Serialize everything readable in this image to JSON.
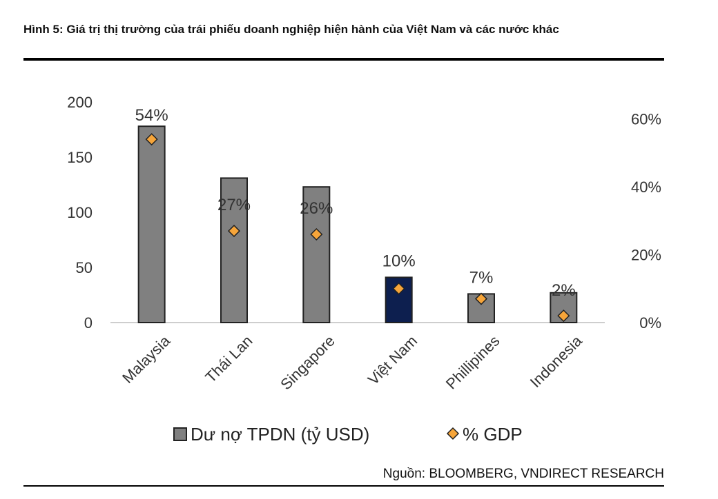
{
  "figure": {
    "title": "Hình 5: Giá trị thị trường của trái phiếu doanh nghiệp hiện hành của Việt Nam và các  nước khác",
    "source": "Nguồn: BLOOMBERG, VNDIRECT RESEARCH"
  },
  "chart_data": {
    "type": "bar",
    "categories": [
      "Malaysia",
      "Thái Lan",
      "Singapore",
      "Việt Nam",
      "Phillipines",
      "Indonesia"
    ],
    "series": [
      {
        "name": "Dư nợ TPDN (tỷ USD)",
        "type": "bar",
        "axis": "left",
        "values": [
          178,
          131,
          123,
          41,
          26,
          27
        ]
      },
      {
        "name": "% GDP",
        "type": "scatter",
        "axis": "right",
        "values": [
          54,
          27,
          26,
          10,
          7,
          2
        ],
        "labels": [
          "54%",
          "27%",
          "26%",
          "10%",
          "7%",
          "2%"
        ]
      }
    ],
    "highlight_category": "Việt Nam",
    "left_axis": {
      "ylim": [
        0,
        200
      ],
      "ticks": [
        "0",
        "50",
        "100",
        "150",
        "200"
      ]
    },
    "right_axis": {
      "ylim": [
        0,
        65
      ],
      "ticks": [
        "0%",
        "20%",
        "40%",
        "60%"
      ],
      "tick_values": [
        0,
        20,
        40,
        60
      ]
    },
    "legend": {
      "position": "bottom"
    },
    "colors": {
      "bar": "#808080",
      "bar_highlight": "#0d1f4f",
      "marker": "#f6a53a",
      "outline": "#222222"
    }
  }
}
